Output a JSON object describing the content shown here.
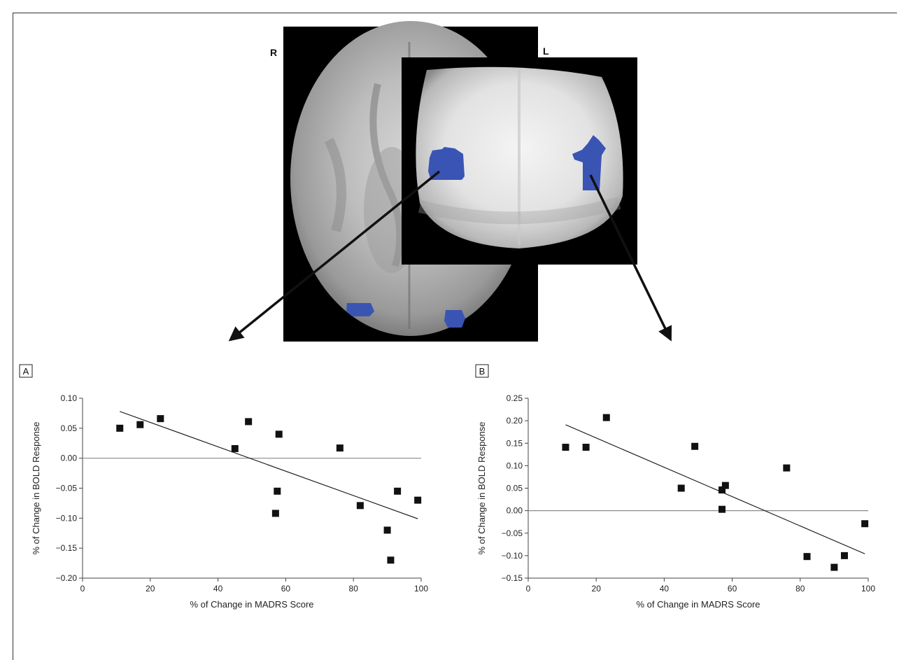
{
  "figure": {
    "orientation_right": "R",
    "orientation_left": "L",
    "region_color": "#3a54b4"
  },
  "chart_data": [
    {
      "type": "scatter",
      "panel_label": "A",
      "xlabel": "% of Change in MADRS Score",
      "ylabel": "% of Change in BOLD Response",
      "xlim": [
        0,
        100
      ],
      "ylim": [
        -0.2,
        0.1
      ],
      "x_ticks": [
        0,
        20,
        40,
        60,
        80,
        100
      ],
      "x_tick_labels": [
        "0",
        "20",
        "40",
        "60",
        "80",
        "100"
      ],
      "y_ticks": [
        -0.2,
        -0.15,
        -0.1,
        -0.05,
        0.0,
        0.05,
        0.1
      ],
      "y_tick_labels": [
        "−0.20",
        "−0.15",
        "−0.10",
        "−0.05",
        "0.00",
        "0.05",
        "0.10"
      ],
      "zero_line": 0,
      "x": [
        11,
        17,
        23,
        45,
        49,
        57,
        57.5,
        58,
        76,
        82,
        90,
        91,
        93,
        99
      ],
      "y": [
        0.05,
        0.056,
        0.066,
        0.016,
        0.061,
        -0.092,
        -0.055,
        0.04,
        0.017,
        -0.079,
        -0.12,
        -0.17,
        -0.055,
        -0.07
      ],
      "fit_line": {
        "x": [
          11,
          99
        ],
        "y": [
          0.078,
          -0.101
        ]
      },
      "grid": false,
      "legend": "none"
    },
    {
      "type": "scatter",
      "panel_label": "B",
      "xlabel": "% of Change in MADRS Score",
      "ylabel": "% of Change in BOLD Response",
      "xlim": [
        0,
        100
      ],
      "ylim": [
        -0.15,
        0.25
      ],
      "x_ticks": [
        0,
        20,
        40,
        60,
        80,
        100
      ],
      "x_tick_labels": [
        "0",
        "20",
        "40",
        "60",
        "80",
        "100"
      ],
      "y_ticks": [
        -0.15,
        -0.1,
        -0.05,
        0.0,
        0.05,
        0.1,
        0.15,
        0.2,
        0.25
      ],
      "y_tick_labels": [
        "−0.15",
        "−0.10",
        "−0.05",
        "0.00",
        "0.05",
        "0.10",
        "0.15",
        "0.20",
        "0.25"
      ],
      "zero_line": 0,
      "x": [
        11,
        17,
        23,
        45,
        49,
        57,
        57,
        58,
        76,
        82,
        90,
        93,
        99
      ],
      "y": [
        0.141,
        0.141,
        0.207,
        0.05,
        0.143,
        0.046,
        0.003,
        0.056,
        0.095,
        -0.102,
        -0.126,
        -0.1,
        -0.029
      ],
      "fit_line": {
        "x": [
          11,
          99
        ],
        "y": [
          0.191,
          -0.096
        ]
      },
      "grid": false,
      "legend": "none"
    }
  ]
}
